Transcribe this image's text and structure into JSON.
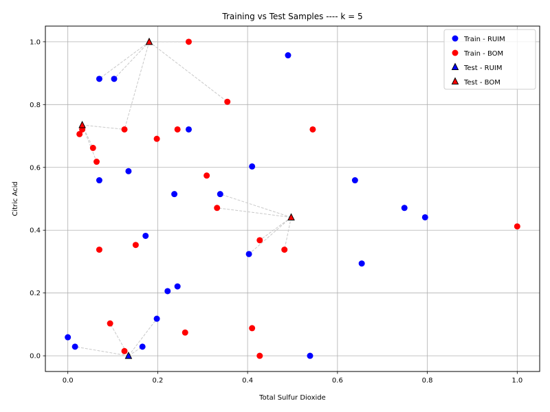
{
  "chart_data": {
    "type": "scatter",
    "title": "Training vs Test Samples ---- k = 5",
    "xlabel": "Total Sulfur Dioxide",
    "ylabel": "Citric Acid",
    "xlim": [
      -0.05,
      1.05
    ],
    "ylim": [
      -0.05,
      1.05
    ],
    "xticks": [
      "0.0",
      "0.2",
      "0.4",
      "0.6",
      "0.8",
      "1.0"
    ],
    "yticks": [
      "0.0",
      "0.2",
      "0.4",
      "0.6",
      "0.8",
      "1.0"
    ],
    "grid": true,
    "legend_position": "top-right",
    "colors": {
      "ruim": "#0000ff",
      "bom": "#ff0000",
      "neighbor_line": "#c8c8c8"
    },
    "series": [
      {
        "name": "Train - RUIM",
        "marker": "circle",
        "points": [
          [
            0.49,
            0.957
          ],
          [
            0.07,
            0.882
          ],
          [
            0.103,
            0.882
          ],
          [
            0.269,
            0.721
          ],
          [
            0.41,
            0.603
          ],
          [
            0.135,
            0.588
          ],
          [
            0.07,
            0.559
          ],
          [
            0.639,
            0.559
          ],
          [
            0.237,
            0.515
          ],
          [
            0.339,
            0.515
          ],
          [
            0.749,
            0.471
          ],
          [
            0.795,
            0.441
          ],
          [
            0.173,
            0.382
          ],
          [
            0.403,
            0.324
          ],
          [
            0.654,
            0.294
          ],
          [
            0.244,
            0.221
          ],
          [
            0.222,
            0.206
          ],
          [
            0.198,
            0.118
          ],
          [
            0.0,
            0.059
          ],
          [
            0.016,
            0.029
          ],
          [
            0.166,
            0.029
          ],
          [
            0.539,
            0.0
          ]
        ]
      },
      {
        "name": "Train - BOM",
        "marker": "circle",
        "points": [
          [
            0.269,
            1.0
          ],
          [
            0.355,
            0.809
          ],
          [
            0.126,
            0.721
          ],
          [
            0.032,
            0.721
          ],
          [
            0.244,
            0.721
          ],
          [
            0.545,
            0.721
          ],
          [
            0.026,
            0.706
          ],
          [
            0.198,
            0.691
          ],
          [
            0.056,
            0.662
          ],
          [
            0.064,
            0.618
          ],
          [
            0.309,
            0.574
          ],
          [
            0.332,
            0.471
          ],
          [
            1.0,
            0.412
          ],
          [
            0.427,
            0.368
          ],
          [
            0.151,
            0.353
          ],
          [
            0.07,
            0.338
          ],
          [
            0.482,
            0.338
          ],
          [
            0.094,
            0.103
          ],
          [
            0.41,
            0.088
          ],
          [
            0.261,
            0.074
          ],
          [
            0.126,
            0.015
          ],
          [
            0.427,
            0.0
          ]
        ]
      },
      {
        "name": "Test - RUIM",
        "marker": "triangle",
        "points": [
          [
            0.135,
            0.0
          ]
        ]
      },
      {
        "name": "Test - BOM",
        "marker": "triangle",
        "points": [
          [
            0.181,
            1.0
          ],
          [
            0.032,
            0.735
          ],
          [
            0.497,
            0.441
          ]
        ]
      }
    ],
    "neighbor_links": [
      {
        "from": [
          0.181,
          1.0
        ],
        "to": [
          [
            0.269,
            1.0
          ],
          [
            0.07,
            0.882
          ],
          [
            0.103,
            0.882
          ],
          [
            0.355,
            0.809
          ],
          [
            0.126,
            0.721
          ]
        ]
      },
      {
        "from": [
          0.032,
          0.735
        ],
        "to": [
          [
            0.032,
            0.721
          ],
          [
            0.026,
            0.706
          ],
          [
            0.056,
            0.662
          ],
          [
            0.064,
            0.618
          ],
          [
            0.126,
            0.721
          ]
        ]
      },
      {
        "from": [
          0.497,
          0.441
        ],
        "to": [
          [
            0.339,
            0.515
          ],
          [
            0.332,
            0.471
          ],
          [
            0.427,
            0.368
          ],
          [
            0.403,
            0.324
          ],
          [
            0.482,
            0.338
          ]
        ]
      },
      {
        "from": [
          0.135,
          0.0
        ],
        "to": [
          [
            0.126,
            0.015
          ],
          [
            0.094,
            0.103
          ],
          [
            0.166,
            0.029
          ],
          [
            0.198,
            0.118
          ],
          [
            0.016,
            0.029
          ]
        ]
      }
    ]
  }
}
